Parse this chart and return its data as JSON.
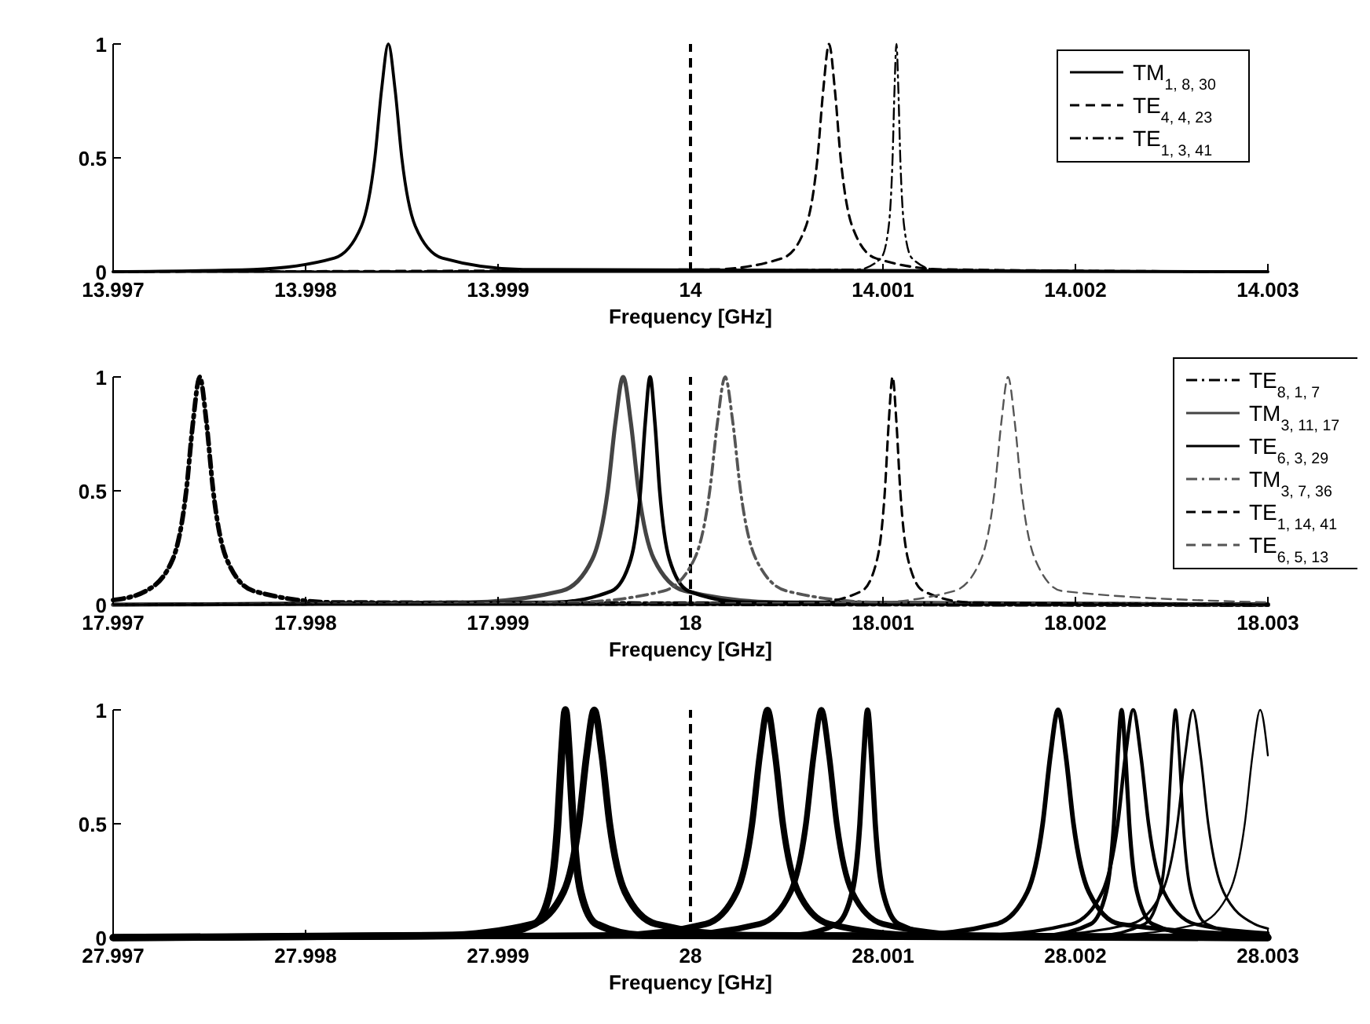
{
  "chart_data": [
    {
      "type": "line",
      "xlabel": "Frequency [GHz]",
      "xlim": [
        13.997,
        14.003
      ],
      "xticks": [
        13.997,
        13.998,
        13.999,
        14,
        14.001,
        14.002,
        14.003
      ],
      "ylim": [
        0,
        1
      ],
      "yticks": [
        0,
        0.5,
        1
      ],
      "grid": false,
      "legend": "top right",
      "ref_lines": [
        {
          "axis": "x",
          "value": 14,
          "line_style": "dashed",
          "color": "#000000"
        }
      ],
      "series": [
        {
          "name": "TM$_{1, 8, 30}$",
          "color": "#000000",
          "line_style": "solid",
          "x": [
            13.997,
            13.99773,
            13.99815,
            13.99829,
            13.99836,
            13.998395,
            13.99843,
            13.998465,
            13.9985,
            13.99857,
            13.99871,
            13.99913,
            14.003
          ],
          "values": [
            0,
            0.01,
            0.06,
            0.2,
            0.5,
            0.8,
            1,
            0.8,
            0.5,
            0.2,
            0.06,
            0.01,
            0
          ]
        },
        {
          "name": "TE$_{4, 4, 23}$",
          "color": "#000000",
          "line_style": "dashed",
          "x": [
            13.997,
            14.00012,
            14.00048,
            14.0006,
            14.00066,
            14.00069,
            14.00072,
            14.00075,
            14.00078,
            14.00084,
            14.00096,
            14.00132,
            14.003
          ],
          "values": [
            0,
            0.01,
            0.06,
            0.2,
            0.5,
            0.8,
            1,
            0.8,
            0.5,
            0.2,
            0.06,
            0.01,
            0
          ]
        },
        {
          "name": "TE$_{1, 3, 41}$",
          "color": "#000000",
          "line_style": "dotted",
          "x": [
            13.997,
            14.00087,
            14.00099,
            14.00103,
            14.00105,
            14.00106,
            14.00107,
            14.00108,
            14.00109,
            14.00111,
            14.00115,
            14.00127,
            14.003
          ],
          "values": [
            0,
            0.01,
            0.06,
            0.2,
            0.5,
            0.8,
            1,
            0.8,
            0.5,
            0.2,
            0.06,
            0.01,
            0
          ]
        }
      ]
    },
    {
      "type": "line",
      "xlabel": "Frequency [GHz]",
      "xlim": [
        17.997,
        18.003
      ],
      "xticks": [
        17.997,
        17.998,
        17.999,
        18,
        18.001,
        18.002,
        18.003
      ],
      "ylim": [
        0,
        1
      ],
      "yticks": [
        0,
        0.5,
        1
      ],
      "grid": false,
      "legend": "right",
      "ref_lines": [
        {
          "axis": "x",
          "value": 18,
          "line_style": "dashed",
          "color": "#000000"
        }
      ],
      "series": [
        {
          "name": "TE$_{8, 1, 7}$",
          "color": "#000000",
          "line_style": "dotted",
          "x": [
            17.997,
            17.99717,
            17.99731,
            17.99738,
            17.997415,
            17.99745,
            17.997485,
            17.99752,
            17.99759,
            17.99773,
            17.99815,
            18.003
          ],
          "values": [
            0.02,
            0.06,
            0.2,
            0.5,
            0.8,
            1,
            0.8,
            0.5,
            0.2,
            0.06,
            0.01,
            0
          ]
        },
        {
          "name": "TM$_{3, 11, 17}$",
          "color": "#444444",
          "line_style": "solid",
          "x": [
            17.997,
            17.99885,
            17.99933,
            17.99949,
            17.99957,
            17.99961,
            17.99965,
            17.99969,
            17.99973,
            17.99981,
            17.99997,
            18.00045,
            18.003
          ],
          "values": [
            0,
            0.01,
            0.06,
            0.2,
            0.5,
            0.8,
            1,
            0.8,
            0.5,
            0.2,
            0.06,
            0.01,
            0
          ]
        },
        {
          "name": "TE$_{6, 3, 29}$",
          "color": "#000000",
          "line_style": "solid",
          "x": [
            17.997,
            17.99929,
            17.99959,
            17.99969,
            17.99974,
            17.999765,
            17.99979,
            17.999815,
            17.99984,
            17.99989,
            17.99999,
            18.00029,
            18.003
          ],
          "values": [
            0,
            0.01,
            0.06,
            0.2,
            0.5,
            0.8,
            1,
            0.8,
            0.5,
            0.2,
            0.06,
            0.01,
            0
          ]
        },
        {
          "name": "TM$_{3, 7, 36}$",
          "color": "#555555",
          "line_style": "dotted",
          "x": [
            17.997,
            17.99938,
            17.99986,
            18.00002,
            18.0001,
            18.00014,
            18.00018,
            18.00022,
            18.00026,
            18.00034,
            18.0005,
            18.00098,
            18.003
          ],
          "values": [
            0,
            0.01,
            0.06,
            0.2,
            0.5,
            0.8,
            1,
            0.8,
            0.5,
            0.2,
            0.06,
            0.01,
            0
          ]
        },
        {
          "name": "TE$_{1, 14, 41}$",
          "color": "#000000",
          "line_style": "dashed",
          "x": [
            17.997,
            18.00065,
            18.00089,
            18.00097,
            18.00101,
            18.00103,
            18.00105,
            18.00107,
            18.00109,
            18.00113,
            18.00121,
            18.00145,
            18.003
          ],
          "values": [
            0,
            0.01,
            0.06,
            0.2,
            0.5,
            0.8,
            1,
            0.8,
            0.5,
            0.2,
            0.06,
            0.01,
            0
          ]
        },
        {
          "name": "TE$_{6, 5, 13}$",
          "color": "#555555",
          "line_style": "dashed",
          "x": [
            17.997,
            18.00095,
            18.00137,
            18.00151,
            18.00158,
            18.001615,
            18.00165,
            18.001685,
            18.00172,
            18.00179,
            18.00193,
            18.003
          ],
          "values": [
            0,
            0.01,
            0.06,
            0.2,
            0.5,
            0.8,
            1,
            0.8,
            0.5,
            0.2,
            0.06,
            0.01
          ]
        }
      ]
    },
    {
      "type": "line",
      "xlabel": "Frequency [GHz]",
      "xlim": [
        27.997,
        28.003
      ],
      "xticks": [
        27.997,
        27.998,
        27.999,
        28,
        28.001,
        28.002,
        28.003
      ],
      "ylim": [
        0,
        1
      ],
      "yticks": [
        0,
        0.5,
        1
      ],
      "grid": false,
      "legend": false,
      "ref_lines": [
        {
          "axis": "x",
          "value": 28,
          "line_style": "dashed",
          "color": "#000000"
        }
      ],
      "series": [
        {
          "color": "#000000",
          "x": [
            27.997,
            27.99895,
            27.99919,
            27.99927,
            27.99931,
            27.99933,
            27.99935,
            27.99937,
            27.99939,
            27.99943,
            27.99951,
            27.99975,
            28.003
          ],
          "values": [
            0,
            0.01,
            0.06,
            0.2,
            0.5,
            0.8,
            1,
            0.8,
            0.5,
            0.2,
            0.06,
            0.01,
            0
          ]
        },
        {
          "color": "#000000",
          "x": [
            27.997,
            27.9987,
            27.99918,
            27.99934,
            27.99942,
            27.99946,
            27.9995,
            27.99954,
            27.99958,
            27.99966,
            27.99982,
            28.0003,
            28.003
          ],
          "values": [
            0,
            0.01,
            0.06,
            0.2,
            0.5,
            0.8,
            1,
            0.8,
            0.5,
            0.2,
            0.06,
            0.01,
            0
          ]
        },
        {
          "color": "#000000",
          "x": [
            27.997,
            27.9996,
            28.00008,
            28.00024,
            28.00032,
            28.00036,
            28.0004,
            28.00044,
            28.00048,
            28.00056,
            28.00072,
            28.0012,
            28.003
          ],
          "values": [
            0,
            0.01,
            0.06,
            0.2,
            0.5,
            0.8,
            1,
            0.8,
            0.5,
            0.2,
            0.06,
            0.01,
            0
          ]
        },
        {
          "color": "#000000",
          "x": [
            27.997,
            27.99988,
            28.00036,
            28.00052,
            28.0006,
            28.00064,
            28.00068,
            28.00072,
            28.00076,
            28.00084,
            28.001,
            28.00148,
            28.003
          ],
          "values": [
            0,
            0.01,
            0.06,
            0.2,
            0.5,
            0.8,
            1,
            0.8,
            0.5,
            0.2,
            0.06,
            0.01,
            0
          ]
        },
        {
          "color": "#000000",
          "x": [
            27.997,
            28.00052,
            28.00076,
            28.00084,
            28.00088,
            28.0009,
            28.00092,
            28.00094,
            28.00096,
            28.001,
            28.00108,
            28.00132,
            28.003
          ],
          "values": [
            0,
            0.01,
            0.06,
            0.2,
            0.5,
            0.8,
            1,
            0.8,
            0.5,
            0.2,
            0.06,
            0.01,
            0
          ]
        },
        {
          "color": "#000000",
          "x": [
            27.997,
            28.00111,
            28.00159,
            28.00175,
            28.00183,
            28.00187,
            28.00191,
            28.00195,
            28.00199,
            28.00207,
            28.00223,
            28.003
          ],
          "values": [
            0,
            0.01,
            0.06,
            0.2,
            0.5,
            0.8,
            1,
            0.8,
            0.5,
            0.2,
            0.06,
            0.01
          ]
        },
        {
          "color": "#000000",
          "x": [
            27.997,
            28.00184,
            28.00208,
            28.00216,
            28.0022,
            28.00222,
            28.00224,
            28.00226,
            28.00228,
            28.00232,
            28.0024,
            28.00264,
            28.003
          ],
          "values": [
            0,
            0.01,
            0.06,
            0.2,
            0.5,
            0.8,
            1,
            0.8,
            0.5,
            0.2,
            0.06,
            0.01,
            0
          ]
        },
        {
          "color": "#000000",
          "x": [
            27.997,
            28.0015,
            28.00198,
            28.00214,
            28.00222,
            28.00226,
            28.0023,
            28.00234,
            28.00238,
            28.00246,
            28.00262,
            28.003
          ],
          "values": [
            0,
            0.01,
            0.06,
            0.2,
            0.5,
            0.8,
            1,
            0.8,
            0.5,
            0.2,
            0.06,
            0.02
          ]
        },
        {
          "color": "#000000",
          "x": [
            27.997,
            28.00212,
            28.00236,
            28.00244,
            28.00248,
            28.0025,
            28.00252,
            28.00254,
            28.00256,
            28.0026,
            28.00268,
            28.00292,
            28.003
          ],
          "values": [
            0,
            0.01,
            0.06,
            0.2,
            0.5,
            0.8,
            1,
            0.8,
            0.5,
            0.2,
            0.06,
            0.01,
            0
          ]
        },
        {
          "color": "#000000",
          "x": [
            27.997,
            28.00181,
            28.00229,
            28.00245,
            28.00253,
            28.00257,
            28.00261,
            28.00265,
            28.00269,
            28.00277,
            28.00293,
            28.003
          ],
          "values": [
            0,
            0.01,
            0.06,
            0.2,
            0.5,
            0.8,
            1,
            0.8,
            0.5,
            0.2,
            0.06,
            0.04
          ]
        },
        {
          "color": "#000000",
          "x": [
            27.997,
            28.00216,
            28.00264,
            28.0028,
            28.00288,
            28.00292,
            28.00296,
            28.003
          ],
          "values": [
            0,
            0.01,
            0.06,
            0.2,
            0.5,
            0.8,
            1,
            0.8
          ]
        }
      ]
    }
  ]
}
